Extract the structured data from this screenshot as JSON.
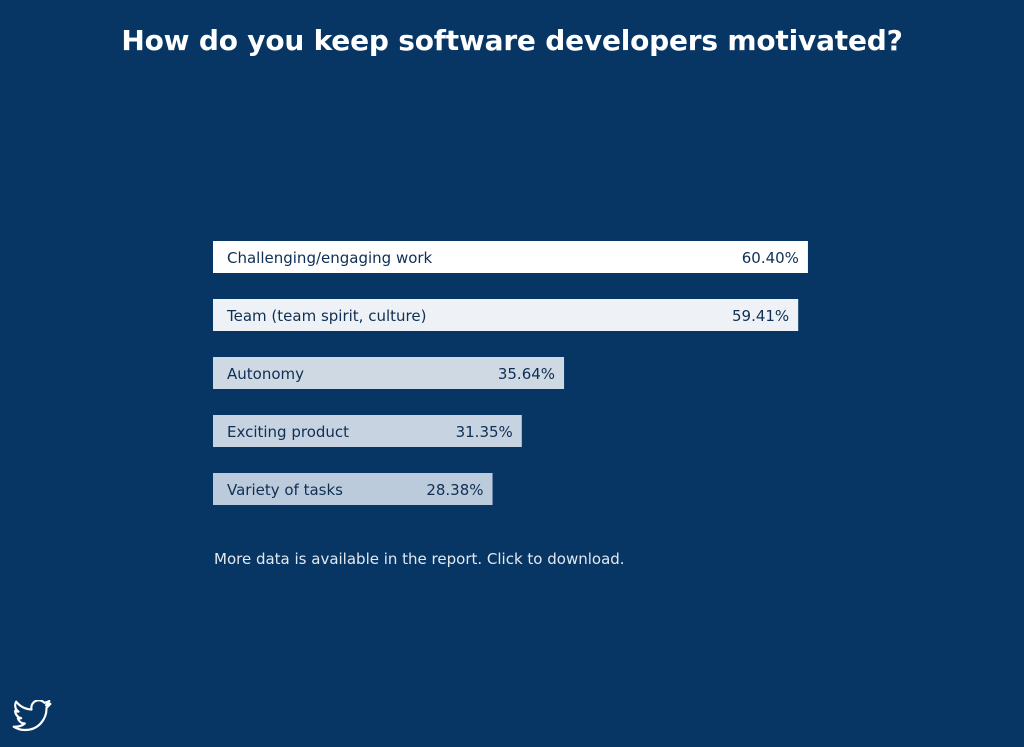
{
  "title": "How do you keep software developers motivated?",
  "footnote": "More data is available in the report. Click to download.",
  "icons": {
    "share": "twitter-bird-icon"
  },
  "colors": {
    "background": "#073664",
    "text_dark": "#0f2f55",
    "bar_fills": [
      "#ffffff",
      "#eef2f6",
      "#cfd9e4",
      "#c7d3e0",
      "#bccbdb"
    ]
  },
  "chart_data": {
    "type": "bar",
    "orientation": "horizontal",
    "categories": [
      "Challenging/engaging work",
      "Team (team spirit, culture)",
      "Autonomy",
      "Exciting product",
      "Variety of tasks"
    ],
    "values": [
      60.4,
      59.41,
      35.64,
      31.35,
      28.38
    ],
    "value_labels": [
      "60.40%",
      "59.41%",
      "35.64%",
      "31.35%",
      "28.38%"
    ],
    "unit": "%",
    "xlim": [
      0,
      100
    ],
    "grid": false,
    "legend": "none"
  }
}
